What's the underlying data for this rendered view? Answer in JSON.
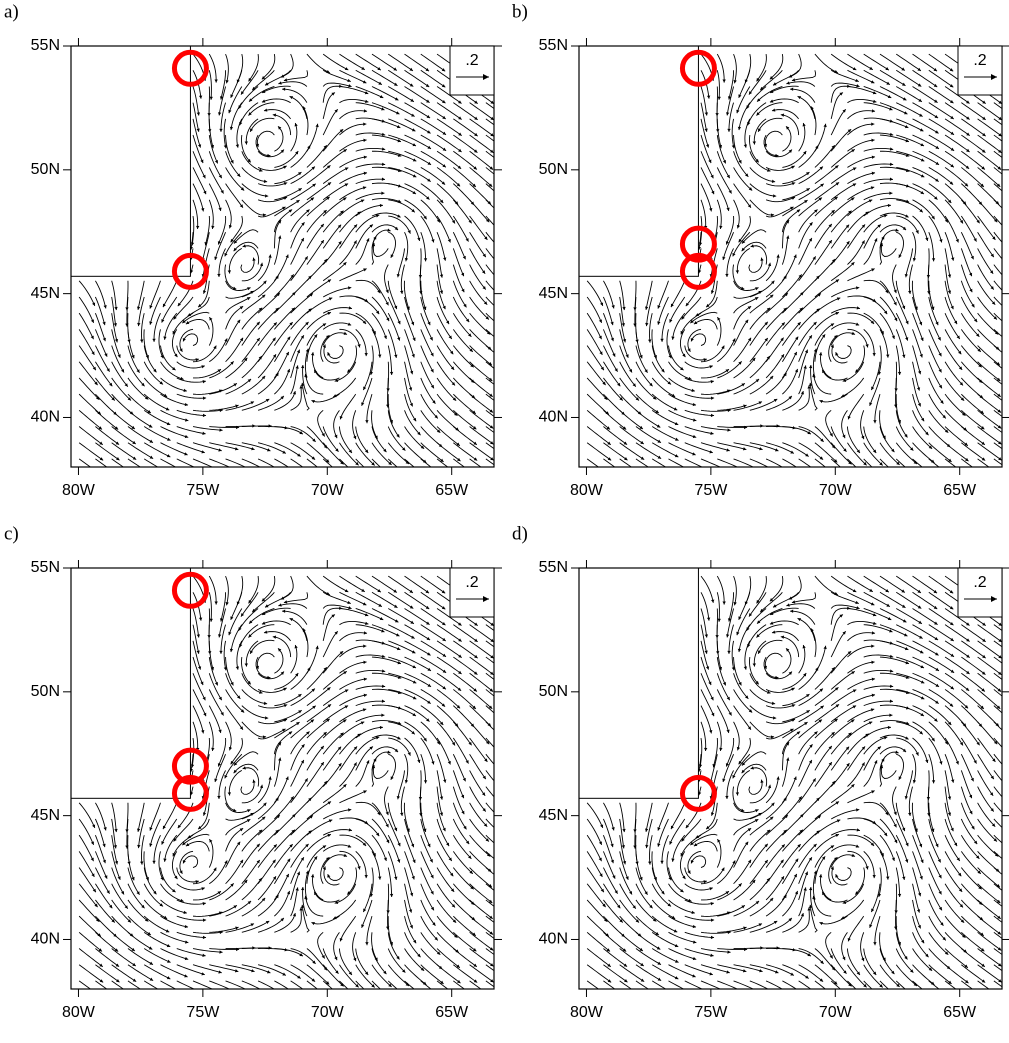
{
  "chart_data": [
    {
      "type": "vector",
      "label": "a)",
      "ref_label": ".2",
      "xlim": [
        -80.3,
        -63.3
      ],
      "ylim": [
        38,
        55
      ],
      "xticks": [
        {
          "value": -80,
          "label": "80W"
        },
        {
          "value": -75,
          "label": "75W"
        },
        {
          "value": -70,
          "label": "70W"
        },
        {
          "value": -65,
          "label": "65W"
        }
      ],
      "yticks": [
        {
          "value": 40,
          "label": "40N"
        },
        {
          "value": 45,
          "label": "45N"
        },
        {
          "value": 50,
          "label": "50N"
        },
        {
          "value": 55,
          "label": "55N"
        }
      ],
      "masked_region": {
        "xlim": [
          -80.3,
          -75.5
        ],
        "ylim": [
          45.7,
          55
        ]
      },
      "markers": {
        "color": "#ff0000",
        "x": [
          -75.5,
          -75.5
        ],
        "y": [
          54.1,
          45.9
        ]
      }
    },
    {
      "type": "vector",
      "label": "b)",
      "ref_label": ".2",
      "xlim": [
        -80.3,
        -63.3
      ],
      "ylim": [
        38,
        55
      ],
      "xticks": [
        {
          "value": -80,
          "label": "80W"
        },
        {
          "value": -75,
          "label": "75W"
        },
        {
          "value": -70,
          "label": "70W"
        },
        {
          "value": -65,
          "label": "65W"
        }
      ],
      "yticks": [
        {
          "value": 40,
          "label": "40N"
        },
        {
          "value": 45,
          "label": "45N"
        },
        {
          "value": 50,
          "label": "50N"
        },
        {
          "value": 55,
          "label": "55N"
        }
      ],
      "masked_region": {
        "xlim": [
          -80.3,
          -75.5
        ],
        "ylim": [
          45.7,
          55
        ]
      },
      "markers": {
        "color": "#ff0000",
        "x": [
          -75.5,
          -75.5,
          -75.5
        ],
        "y": [
          54.1,
          47.0,
          45.9
        ]
      }
    },
    {
      "type": "vector",
      "label": "c)",
      "ref_label": ".2",
      "xlim": [
        -80.3,
        -63.3
      ],
      "ylim": [
        38,
        55
      ],
      "xticks": [
        {
          "value": -80,
          "label": "80W"
        },
        {
          "value": -75,
          "label": "75W"
        },
        {
          "value": -70,
          "label": "70W"
        },
        {
          "value": -65,
          "label": "65W"
        }
      ],
      "yticks": [
        {
          "value": 40,
          "label": "40N"
        },
        {
          "value": 45,
          "label": "45N"
        },
        {
          "value": 50,
          "label": "50N"
        },
        {
          "value": 55,
          "label": "55N"
        }
      ],
      "masked_region": {
        "xlim": [
          -80.3,
          -75.5
        ],
        "ylim": [
          45.7,
          55
        ]
      },
      "markers": {
        "color": "#ff0000",
        "x": [
          -75.5,
          -75.5,
          -75.5
        ],
        "y": [
          54.1,
          47.0,
          45.9
        ]
      }
    },
    {
      "type": "vector",
      "label": "d)",
      "ref_label": ".2",
      "xlim": [
        -80.3,
        -63.3
      ],
      "ylim": [
        38,
        55
      ],
      "xticks": [
        {
          "value": -80,
          "label": "80W"
        },
        {
          "value": -75,
          "label": "75W"
        },
        {
          "value": -70,
          "label": "70W"
        },
        {
          "value": -65,
          "label": "65W"
        }
      ],
      "yticks": [
        {
          "value": 40,
          "label": "40N"
        },
        {
          "value": 45,
          "label": "45N"
        },
        {
          "value": 50,
          "label": "50N"
        },
        {
          "value": 55,
          "label": "55N"
        }
      ],
      "masked_region": {
        "xlim": [
          -80.3,
          -75.5
        ],
        "ylim": [
          45.7,
          55
        ]
      },
      "markers": {
        "color": "#ff0000",
        "x": [
          -75.5
        ],
        "y": [
          45.9
        ]
      }
    }
  ]
}
